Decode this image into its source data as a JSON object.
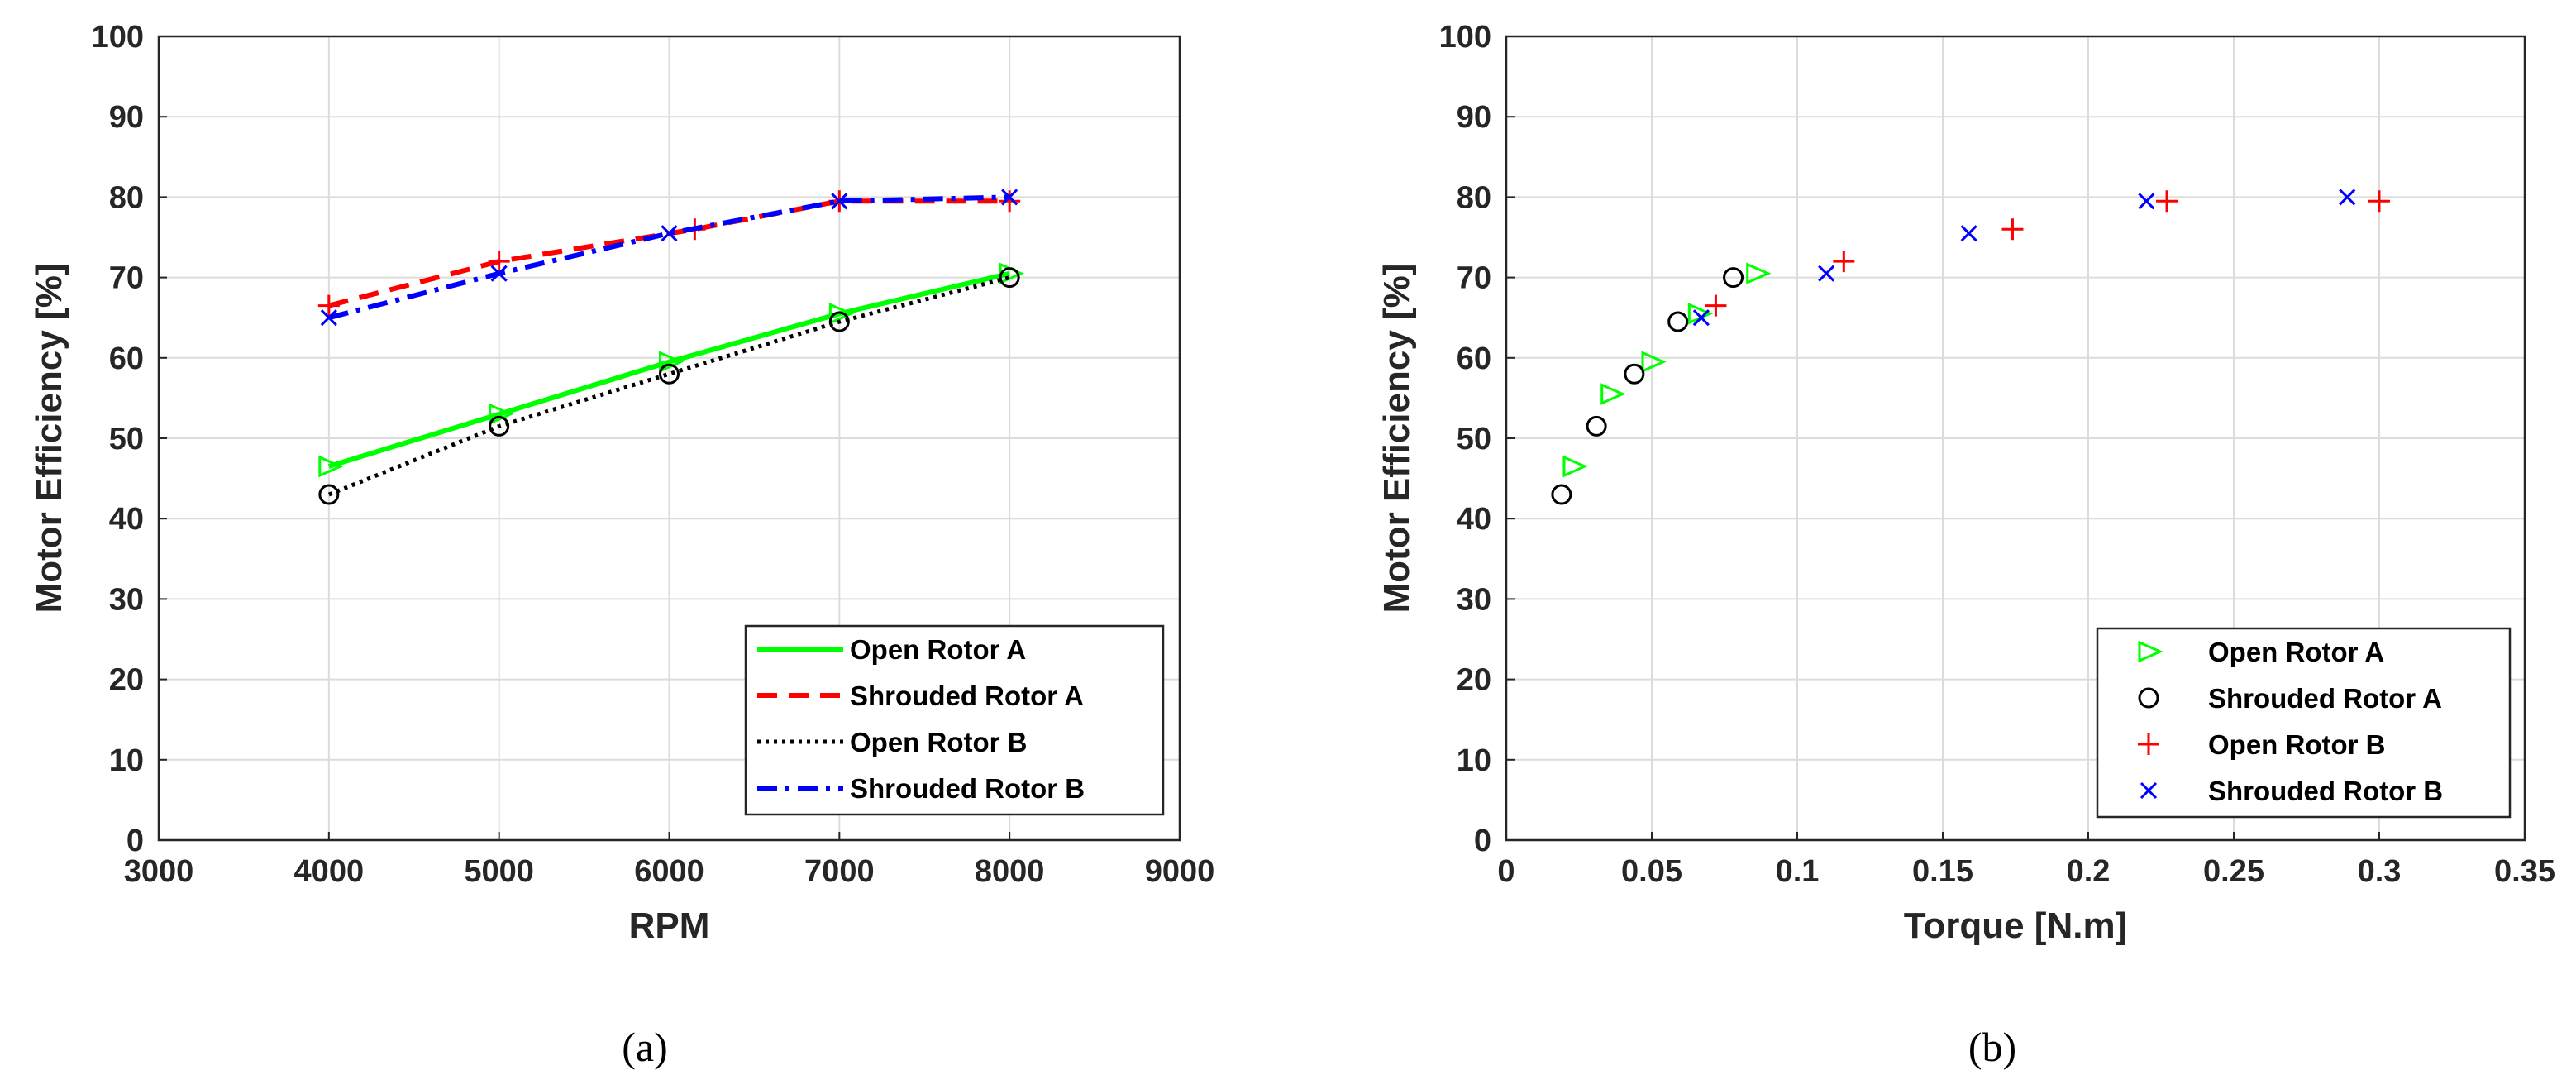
{
  "chart_data": [
    {
      "type": "line",
      "caption": "(a)",
      "xlabel": "RPM",
      "ylabel": "Motor Efficiency [%]",
      "xlim": [
        3000,
        9000
      ],
      "ylim": [
        0,
        100
      ],
      "xticks": [
        "3000",
        "4000",
        "5000",
        "6000",
        "7000",
        "8000",
        "9000"
      ],
      "yticks": [
        "0",
        "10",
        "20",
        "30",
        "40",
        "50",
        "60",
        "70",
        "80",
        "90",
        "100"
      ],
      "grid": true,
      "legend_position": "bottom-right",
      "series": [
        {
          "name": "Open Rotor A",
          "color": "#00ff00",
          "line": "solid",
          "marker": "triangle-right",
          "x": [
            4000,
            5000,
            6000,
            7000,
            8000
          ],
          "y": [
            46.5,
            53,
            59.5,
            65.5,
            70.5
          ]
        },
        {
          "name": "Shrouded Rotor A",
          "color": "#ff0000",
          "line": "dashed",
          "marker": "plus",
          "x": [
            4000,
            5000,
            6150,
            7000,
            8000
          ],
          "y": [
            66.5,
            72,
            76,
            79.5,
            79.5
          ]
        },
        {
          "name": "Open Rotor B",
          "color": "#000000",
          "line": "dotted",
          "marker": "circle",
          "x": [
            4000,
            5000,
            6000,
            7000,
            8000
          ],
          "y": [
            43,
            51.5,
            58,
            64.5,
            70
          ]
        },
        {
          "name": "Shrouded Rotor B",
          "color": "#0000ff",
          "line": "dashdot",
          "marker": "x",
          "x": [
            4000,
            5000,
            6000,
            7000,
            8000
          ],
          "y": [
            65,
            70.5,
            75.5,
            79.5,
            80
          ]
        }
      ]
    },
    {
      "type": "scatter",
      "caption": "(b)",
      "xlabel": "Torque [N.m]",
      "ylabel": "Motor Efficiency [%]",
      "xlim": [
        0,
        0.35
      ],
      "ylim": [
        0,
        100
      ],
      "xticks": [
        "0",
        "0.05",
        "0.1",
        "0.15",
        "0.2",
        "0.25",
        "0.3",
        "0.35"
      ],
      "yticks": [
        "0",
        "10",
        "20",
        "30",
        "40",
        "50",
        "60",
        "70",
        "80",
        "90",
        "100"
      ],
      "grid": true,
      "legend_position": "bottom-right",
      "series": [
        {
          "name": "Open Rotor A",
          "color": "#00ff00",
          "marker": "triangle-right",
          "x": [
            0.023,
            0.036,
            0.05,
            0.066,
            0.086
          ],
          "y": [
            46.5,
            55.5,
            59.5,
            65.5,
            70.5
          ]
        },
        {
          "name": "Shrouded Rotor A",
          "color": "#000000",
          "marker": "circle",
          "x": [
            0.019,
            0.031,
            0.044,
            0.059,
            0.078
          ],
          "y": [
            43,
            51.5,
            58,
            64.5,
            70
          ]
        },
        {
          "name": "Open Rotor B",
          "color": "#ff0000",
          "marker": "plus",
          "x": [
            0.072,
            0.116,
            0.174,
            0.227,
            0.3
          ],
          "y": [
            66.5,
            72,
            76,
            79.5,
            79.5
          ]
        },
        {
          "name": "Shrouded Rotor B",
          "color": "#0000ff",
          "marker": "x",
          "x": [
            0.067,
            0.11,
            0.159,
            0.22,
            0.289
          ],
          "y": [
            65,
            70.5,
            75.5,
            79.5,
            80
          ]
        }
      ]
    }
  ]
}
